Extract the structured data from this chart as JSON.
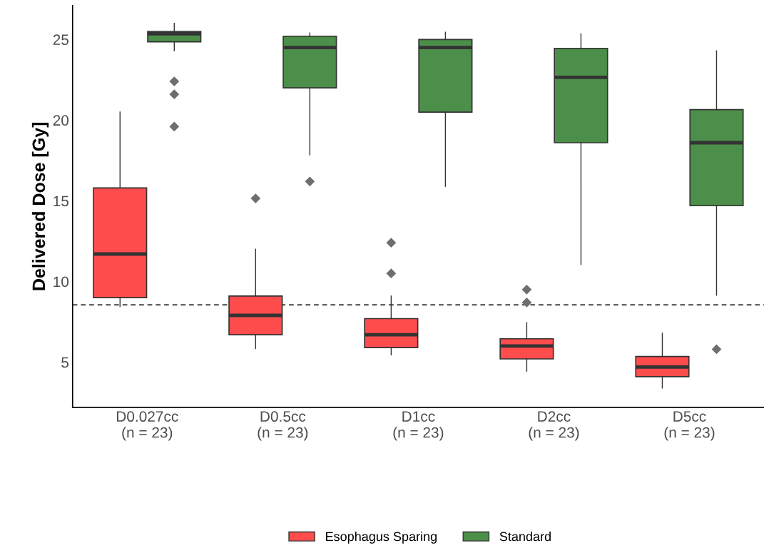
{
  "chart_data": {
    "type": "box",
    "ylabel": "Delivered Dose [Gy]",
    "categories": [
      "D0.027cc\n(n = 23)",
      "D0.5cc\n(n = 23)",
      "D1cc\n(n = 23)",
      "D2cc\n(n = 23)",
      "D5cc\n(n = 23)"
    ],
    "ylim": [
      2.2,
      27.1
    ],
    "yticks": [
      5,
      10,
      15,
      20,
      25
    ],
    "grid": false,
    "legend": "bottom",
    "marker": "diamond",
    "ref_lines": [
      {
        "axis": "y",
        "value": 8.55,
        "color": "#000000",
        "line_style": "dashed"
      }
    ],
    "series": [
      {
        "name": "Esophagus Sparing",
        "color": "#ff4c4c",
        "boxes": [
          {
            "low": 8.45,
            "q1": 9.0,
            "median": 11.7,
            "q3": 15.8,
            "high": 20.5
          },
          {
            "low": 5.85,
            "q1": 6.7,
            "median": 7.9,
            "q3": 9.1,
            "high": 12.0,
            "outliers": [
              15.15
            ]
          },
          {
            "low": 5.45,
            "q1": 5.9,
            "median": 6.7,
            "q3": 7.7,
            "high": 9.1,
            "outliers": [
              10.5,
              12.4
            ]
          },
          {
            "low": 4.45,
            "q1": 5.2,
            "median": 6.0,
            "q3": 6.45,
            "high": 7.45,
            "outliers": [
              8.7,
              9.5
            ]
          },
          {
            "low": 3.4,
            "q1": 4.1,
            "median": 4.7,
            "q3": 5.35,
            "high": 6.8
          }
        ]
      },
      {
        "name": "Standard",
        "color": "#4c8f4a",
        "boxes": [
          {
            "low": 24.3,
            "q1": 24.85,
            "median": 25.35,
            "q3": 25.5,
            "high": 26.0,
            "outliers": [
              19.6,
              21.6,
              22.4
            ]
          },
          {
            "low": 17.85,
            "q1": 22.0,
            "median": 24.5,
            "q3": 25.2,
            "high": 25.4,
            "outliers": [
              16.2
            ]
          },
          {
            "low": 15.9,
            "q1": 20.5,
            "median": 24.5,
            "q3": 25.0,
            "high": 25.45
          },
          {
            "low": 11.05,
            "q1": 18.6,
            "median": 22.65,
            "q3": 24.45,
            "high": 25.35
          },
          {
            "low": 9.15,
            "q1": 14.7,
            "median": 18.6,
            "q3": 20.65,
            "high": 24.3,
            "outliers": [
              5.8
            ]
          }
        ]
      }
    ]
  }
}
